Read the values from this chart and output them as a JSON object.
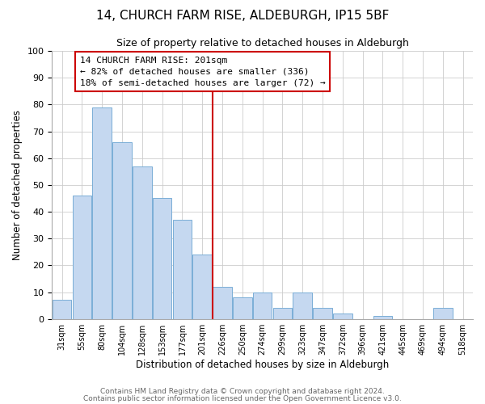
{
  "title": "14, CHURCH FARM RISE, ALDEBURGH, IP15 5BF",
  "subtitle": "Size of property relative to detached houses in Aldeburgh",
  "xlabel": "Distribution of detached houses by size in Aldeburgh",
  "ylabel": "Number of detached properties",
  "bar_labels": [
    "31sqm",
    "55sqm",
    "80sqm",
    "104sqm",
    "128sqm",
    "153sqm",
    "177sqm",
    "201sqm",
    "226sqm",
    "250sqm",
    "274sqm",
    "299sqm",
    "323sqm",
    "347sqm",
    "372sqm",
    "396sqm",
    "421sqm",
    "445sqm",
    "469sqm",
    "494sqm",
    "518sqm"
  ],
  "bar_values": [
    7,
    46,
    79,
    66,
    57,
    45,
    37,
    24,
    12,
    8,
    10,
    4,
    10,
    4,
    2,
    0,
    1,
    0,
    0,
    4,
    0
  ],
  "bar_color": "#c5d8f0",
  "bar_edge_color": "#7aaed6",
  "highlight_index": 7,
  "highlight_line_color": "#cc0000",
  "ylim": [
    0,
    100
  ],
  "annotation_text": "14 CHURCH FARM RISE: 201sqm\n← 82% of detached houses are smaller (336)\n18% of semi-detached houses are larger (72) →",
  "annotation_box_color": "#ffffff",
  "annotation_box_edge": "#cc0000",
  "footer_line1": "Contains HM Land Registry data © Crown copyright and database right 2024.",
  "footer_line2": "Contains public sector information licensed under the Open Government Licence v3.0.",
  "title_fontsize": 11,
  "subtitle_fontsize": 9,
  "annotation_fontsize": 8,
  "footer_fontsize": 6.5
}
